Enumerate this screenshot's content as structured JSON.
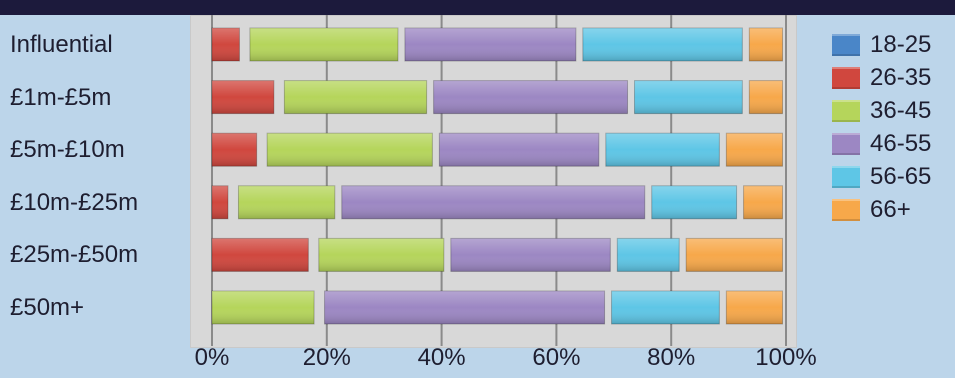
{
  "chart_data": {
    "type": "bar",
    "orientation": "horizontal",
    "stacked": true,
    "percent_stacked": true,
    "categories": [
      "Influential",
      "£1m-£5m",
      "£5m-£10m",
      "£10m-£25m",
      "£25m-£50m",
      "£50m+"
    ],
    "series": [
      {
        "name": "18-25",
        "color": "#4a86c8",
        "values": [
          0,
          0,
          0,
          0,
          0,
          0
        ]
      },
      {
        "name": "26-35",
        "color": "#d0473e",
        "values": [
          6,
          12,
          9,
          4,
          18,
          0
        ]
      },
      {
        "name": "36-45",
        "color": "#b5d55b",
        "values": [
          27,
          26,
          30,
          18,
          23,
          19
        ]
      },
      {
        "name": "46-55",
        "color": "#9c87c3",
        "values": [
          31,
          35,
          29,
          54,
          29,
          50
        ]
      },
      {
        "name": "56-65",
        "color": "#5ec6e6",
        "values": [
          29,
          20,
          21,
          16,
          12,
          20
        ]
      },
      {
        "name": "66+",
        "color": "#f7a84a",
        "values": [
          7,
          7,
          11,
          8,
          18,
          11
        ]
      }
    ],
    "x_ticks": [
      "0%",
      "20%",
      "40%",
      "60%",
      "80%",
      "100%"
    ],
    "xlim": [
      0,
      100
    ],
    "grid": true,
    "legend_position": "right"
  },
  "colors": {
    "background": "#bcd5ea",
    "plot_background": "#d8d8d8",
    "top_band": "#1c1a3c",
    "gridline": "#8a8a8a"
  }
}
